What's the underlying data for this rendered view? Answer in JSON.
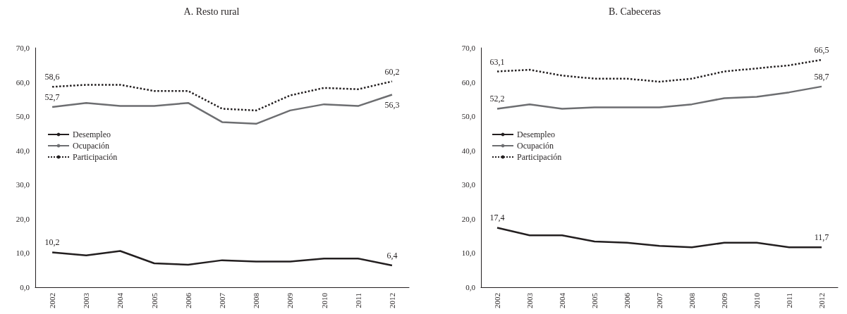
{
  "chart_data": [
    {
      "type": "line",
      "title": "A. Resto rural",
      "categories": [
        "2002",
        "2003",
        "2004",
        "2005",
        "2006",
        "2007",
        "2008",
        "2009",
        "2010",
        "2011",
        "2012"
      ],
      "series": [
        {
          "name": "Desempleo",
          "color": "#231f20",
          "line_style": "solid",
          "values": [
            10.2,
            9.3,
            10.6,
            7.0,
            6.6,
            7.9,
            7.5,
            7.5,
            8.4,
            8.4,
            6.4
          ],
          "value_labels": [
            "10,2",
            null,
            null,
            null,
            null,
            null,
            null,
            null,
            null,
            null,
            "6,4"
          ]
        },
        {
          "name": "Ocupación",
          "color": "#6d6e71",
          "line_style": "solid",
          "values": [
            52.7,
            53.9,
            53.0,
            53.0,
            53.9,
            48.3,
            47.8,
            51.7,
            53.5,
            53.0,
            56.3
          ],
          "value_labels": [
            "52,7",
            null,
            null,
            null,
            null,
            null,
            null,
            null,
            null,
            null,
            "56,3"
          ]
        },
        {
          "name": "Participación",
          "color": "#231f20",
          "line_style": "dotted",
          "values": [
            58.6,
            59.2,
            59.2,
            57.4,
            57.4,
            52.2,
            51.7,
            56.1,
            58.3,
            57.9,
            60.2
          ],
          "value_labels": [
            "58,6",
            null,
            null,
            null,
            null,
            null,
            null,
            null,
            null,
            null,
            "60,2"
          ]
        }
      ],
      "ylim": [
        0,
        70
      ],
      "yticks": [
        {
          "value": 0,
          "label": "0,0"
        },
        {
          "value": 10,
          "label": "10,0"
        },
        {
          "value": 20,
          "label": "20,0"
        },
        {
          "value": 30,
          "label": "30,0"
        },
        {
          "value": 40,
          "label": "40,0"
        },
        {
          "value": 50,
          "label": "50,0"
        },
        {
          "value": 60,
          "label": "60,0"
        },
        {
          "value": 70,
          "label": "70,0"
        }
      ],
      "grid": false,
      "legend": "left",
      "marker": "none"
    },
    {
      "type": "line",
      "title": "B. Cabeceras",
      "categories": [
        "2002",
        "2003",
        "2004",
        "2005",
        "2006",
        "2007",
        "2008",
        "2009",
        "2010",
        "2011",
        "2012"
      ],
      "series": [
        {
          "name": "Desempleo",
          "color": "#231f20",
          "line_style": "solid",
          "values": [
            17.4,
            15.2,
            15.2,
            13.4,
            13.0,
            12.1,
            11.7,
            13.0,
            13.0,
            11.7,
            11.7
          ],
          "value_labels": [
            "17,4",
            null,
            null,
            null,
            null,
            null,
            null,
            null,
            null,
            null,
            "11,7"
          ]
        },
        {
          "name": "Ocupación",
          "color": "#6d6e71",
          "line_style": "solid",
          "values": [
            52.2,
            53.5,
            52.2,
            52.6,
            52.6,
            52.6,
            53.5,
            55.3,
            55.7,
            57.0,
            58.7
          ],
          "value_labels": [
            "52,2",
            null,
            null,
            null,
            null,
            null,
            null,
            null,
            null,
            null,
            "58,7"
          ]
        },
        {
          "name": "Participación",
          "color": "#231f20",
          "line_style": "dotted",
          "values": [
            63.1,
            63.6,
            61.9,
            61.0,
            61.0,
            60.1,
            61.0,
            63.1,
            64.0,
            64.9,
            66.5
          ],
          "value_labels": [
            "63,1",
            null,
            null,
            null,
            null,
            null,
            null,
            null,
            null,
            null,
            "66,5"
          ]
        }
      ],
      "ylim": [
        0,
        70
      ],
      "yticks": [
        {
          "value": 0,
          "label": "0,0"
        },
        {
          "value": 10,
          "label": "10,0"
        },
        {
          "value": 20,
          "label": "20,0"
        },
        {
          "value": 30,
          "label": "30,0"
        },
        {
          "value": 40,
          "label": "40,0"
        },
        {
          "value": 50,
          "label": "50,0"
        },
        {
          "value": 60,
          "label": "60,0"
        },
        {
          "value": 70,
          "label": "70,0"
        }
      ],
      "grid": false,
      "legend": "left",
      "marker": "none"
    }
  ]
}
